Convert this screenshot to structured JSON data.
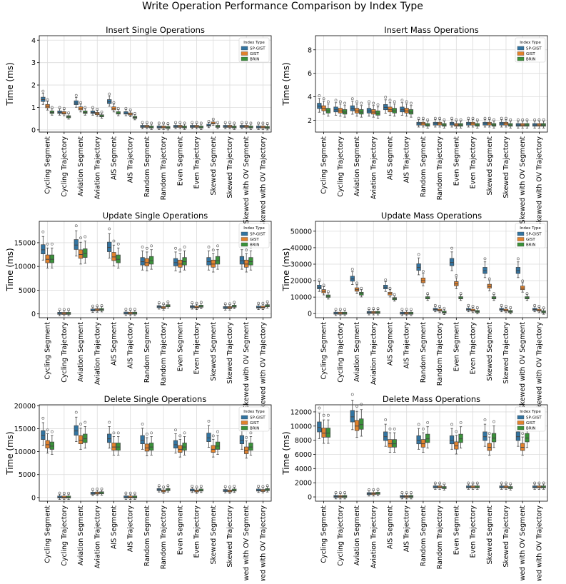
{
  "figure": {
    "title": "Write Operation Performance Comparison by Index Type"
  },
  "colors": {
    "SP-GIST": "#3274a1",
    "GIST": "#e1812c",
    "BRIN": "#3a923a"
  },
  "categories": [
    "Cycling Segment",
    "Cycling Trajectory",
    "Aviation Segment",
    "Aviation Trajectory",
    "AIS Segment",
    "AIS Trajectory",
    "Random Segment",
    "Random Trajectory",
    "Even Segment",
    "Even Trajectory",
    "Skewed Segment",
    "Skewed Trajectory",
    "Skewed with OV Segment",
    "Skewed with OV Trajectory"
  ],
  "chart_data": [
    {
      "type": "box",
      "title": "Insert Single Operations",
      "ylabel": "Time (ms)",
      "ylim": [
        -0.1,
        4.2
      ],
      "yticks": [
        0,
        1,
        2,
        3,
        4
      ],
      "legend_title": "Index Type",
      "series": [
        {
          "name": "SP-GIST",
          "medians": [
            1.35,
            0.78,
            1.2,
            0.78,
            1.25,
            0.75,
            0.15,
            0.12,
            0.15,
            0.15,
            0.2,
            0.15,
            0.15,
            0.12
          ]
        },
        {
          "name": "GIST",
          "medians": [
            1.05,
            0.75,
            0.95,
            0.72,
            0.95,
            0.7,
            0.15,
            0.12,
            0.15,
            0.15,
            0.3,
            0.15,
            0.15,
            0.12
          ]
        },
        {
          "name": "BRIN",
          "medians": [
            0.78,
            0.58,
            0.78,
            0.62,
            0.75,
            0.55,
            0.12,
            0.1,
            0.12,
            0.12,
            0.15,
            0.12,
            0.12,
            0.1
          ]
        }
      ]
    },
    {
      "type": "box",
      "title": "Insert Mass Operations",
      "ylabel": "Time (ms)",
      "ylim": [
        1.0,
        9.2
      ],
      "yticks": [
        2,
        4,
        6,
        8
      ],
      "legend_title": "Index Type",
      "series": [
        {
          "name": "SP-GIST",
          "medians": [
            3.2,
            2.9,
            3.0,
            2.8,
            3.1,
            2.9,
            1.7,
            1.7,
            1.7,
            1.7,
            1.7,
            1.7,
            1.6,
            1.6
          ]
        },
        {
          "name": "GIST",
          "medians": [
            3.0,
            2.8,
            2.8,
            2.7,
            2.9,
            2.8,
            1.7,
            1.7,
            1.6,
            1.7,
            1.7,
            1.7,
            1.6,
            1.6
          ]
        },
        {
          "name": "BRIN",
          "medians": [
            2.8,
            2.7,
            2.7,
            2.6,
            2.8,
            2.7,
            1.6,
            1.6,
            1.6,
            1.6,
            1.6,
            1.6,
            1.6,
            1.6
          ]
        }
      ]
    },
    {
      "type": "box",
      "title": "Update Single Operations",
      "ylabel": "Time (ms)",
      "ylim": [
        -800,
        19500
      ],
      "yticks": [
        0,
        5000,
        10000,
        15000
      ],
      "legend_title": "Index Type",
      "series": [
        {
          "name": "SP-GIST",
          "medians": [
            13500,
            100,
            14500,
            800,
            14000,
            150,
            11000,
            1500,
            10800,
            1500,
            11000,
            1300,
            11200,
            1400
          ]
        },
        {
          "name": "GIST",
          "medians": [
            11500,
            80,
            12500,
            850,
            12000,
            120,
            10800,
            1300,
            10500,
            1400,
            10500,
            1300,
            10500,
            1400
          ]
        },
        {
          "name": "BRIN",
          "medians": [
            11500,
            90,
            12700,
            900,
            11500,
            130,
            11200,
            1700,
            11000,
            1600,
            11200,
            1600,
            11000,
            1700
          ]
        }
      ]
    },
    {
      "type": "box",
      "title": "Update Mass Operations",
      "ylabel": "Time (ms)",
      "ylim": [
        -2500,
        56000
      ],
      "yticks": [
        0,
        10000,
        20000,
        30000,
        40000,
        50000
      ],
      "legend_title": "Index Type",
      "series": [
        {
          "name": "SP-GIST",
          "medians": [
            16000,
            200,
            21000,
            600,
            16000,
            200,
            28000,
            2500,
            31000,
            2500,
            26000,
            2500,
            26000,
            2500
          ]
        },
        {
          "name": "GIST",
          "medians": [
            13500,
            150,
            14500,
            600,
            12000,
            150,
            20000,
            2000,
            18000,
            2000,
            16500,
            2000,
            15500,
            2000
          ]
        },
        {
          "name": "BRIN",
          "medians": [
            10500,
            150,
            12000,
            600,
            9000,
            150,
            9500,
            800,
            9500,
            1200,
            9500,
            1200,
            9500,
            1000
          ]
        }
      ]
    },
    {
      "type": "box",
      "title": "Delete Single Operations",
      "ylabel": "Time (ms)",
      "ylim": [
        -800,
        20200
      ],
      "yticks": [
        0,
        5000,
        10000,
        15000,
        20000
      ],
      "legend_title": "Index Type",
      "series": [
        {
          "name": "SP-GIST",
          "medians": [
            13500,
            80,
            14500,
            900,
            12800,
            100,
            12500,
            1700,
            11500,
            1600,
            13000,
            1500,
            12500,
            1600
          ]
        },
        {
          "name": "GIST",
          "medians": [
            11500,
            60,
            12500,
            950,
            11000,
            80,
            10800,
            1400,
            10500,
            1400,
            10500,
            1400,
            10200,
            1500
          ]
        },
        {
          "name": "BRIN",
          "medians": [
            11200,
            70,
            12800,
            1000,
            11000,
            90,
            11000,
            1700,
            11000,
            1600,
            11200,
            1600,
            11000,
            1700
          ]
        }
      ]
    },
    {
      "type": "box",
      "title": "Delete Mass Operations",
      "ylabel": "Time (ms)",
      "ylim": [
        -600,
        13000
      ],
      "yticks": [
        0,
        2000,
        4000,
        6000,
        8000,
        10000,
        12000
      ],
      "legend_title": "Index Type",
      "series": [
        {
          "name": "SP-GIST",
          "medians": [
            9800,
            50,
            11300,
            450,
            8500,
            50,
            8000,
            1400,
            8000,
            1400,
            8500,
            1400,
            8500,
            1400
          ]
        },
        {
          "name": "GIST",
          "medians": [
            9000,
            40,
            10000,
            450,
            7500,
            40,
            7500,
            1400,
            7200,
            1400,
            7000,
            1400,
            7000,
            1400
          ]
        },
        {
          "name": "BRIN",
          "medians": [
            9000,
            45,
            10200,
            500,
            7500,
            45,
            8200,
            1300,
            8200,
            1400,
            8300,
            1300,
            8300,
            1400
          ]
        }
      ]
    }
  ]
}
